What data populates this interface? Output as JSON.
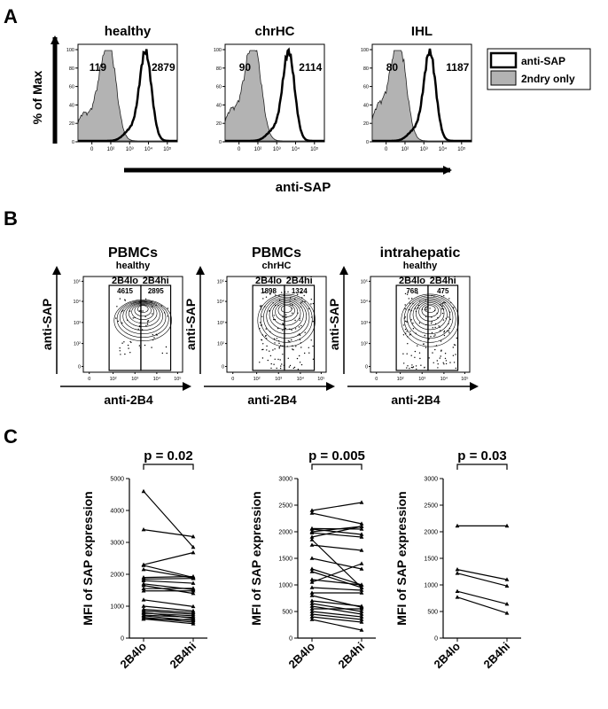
{
  "panels": {
    "A": "A",
    "B": "B",
    "C": "C"
  },
  "panel_a": {
    "ylabel": "% of Max",
    "xlabel": "anti-SAP",
    "legend": [
      "anti-SAP",
      "2ndry only"
    ],
    "histograms": [
      {
        "title": "healthy",
        "mfi_2ndry": "119",
        "mfi_sap": "2879"
      },
      {
        "title": "chrHC",
        "mfi_2ndry": "90",
        "mfi_sap": "2114"
      },
      {
        "title": "IHL",
        "mfi_2ndry": "80",
        "mfi_sap": "1187"
      }
    ],
    "y_ticks": [
      "0",
      "20",
      "40",
      "60",
      "80",
      "100"
    ],
    "x_ticks": [
      "0",
      "10²",
      "10³",
      "10⁴",
      "10⁵"
    ]
  },
  "panel_b": {
    "xlabel": "anti-2B4",
    "ylabel": "anti-SAP",
    "gate_lo": "2B4lo",
    "gate_hi": "2B4hi",
    "plots": [
      {
        "title": "PBMCs",
        "subtitle": "healthy",
        "val_lo": "4615",
        "val_hi": "2895"
      },
      {
        "title": "PBMCs",
        "subtitle": "chrHC",
        "val_lo": "1898",
        "val_hi": "1324"
      },
      {
        "title": "intrahepatic",
        "subtitle": "healthy",
        "val_lo": "768",
        "val_hi": "475"
      }
    ],
    "y_ticks": [
      "0",
      "10²",
      "10³",
      "10⁴",
      "10⁵"
    ],
    "x_ticks": [
      "0",
      "10²",
      "10³",
      "10⁴",
      "10⁵"
    ]
  },
  "chart_data": [
    {
      "type": "line",
      "title": "p = 0.02",
      "ylabel": "MFI of SAP expression",
      "categories": [
        "2B4lo",
        "2B4hi"
      ],
      "ylim": [
        0,
        5000
      ],
      "y_ticks": [
        "0",
        "1000",
        "2000",
        "3000",
        "4000",
        "5000"
      ],
      "pairs": [
        [
          4600,
          2850
        ],
        [
          3400,
          3180
        ],
        [
          2300,
          2680
        ],
        [
          2280,
          1900
        ],
        [
          2150,
          1880
        ],
        [
          1900,
          1930
        ],
        [
          1850,
          1870
        ],
        [
          1800,
          1720
        ],
        [
          1700,
          1520
        ],
        [
          1650,
          1400
        ],
        [
          1550,
          1560
        ],
        [
          1480,
          1480
        ],
        [
          1200,
          990
        ],
        [
          1000,
          850
        ],
        [
          900,
          800
        ],
        [
          850,
          750
        ],
        [
          800,
          620
        ],
        [
          780,
          700
        ],
        [
          720,
          650
        ],
        [
          700,
          550
        ],
        [
          650,
          500
        ],
        [
          600,
          580
        ],
        [
          600,
          450
        ]
      ]
    },
    {
      "type": "line",
      "title": "p = 0.005",
      "ylabel": "MFI of SAP expression",
      "categories": [
        "2B4lo",
        "2B4hi"
      ],
      "ylim": [
        0,
        3000
      ],
      "y_ticks": [
        "0",
        "500",
        "1000",
        "1500",
        "2000",
        "2500",
        "3000"
      ],
      "pairs": [
        [
          2400,
          2550
        ],
        [
          2350,
          2150
        ],
        [
          2060,
          2050
        ],
        [
          2050,
          1950
        ],
        [
          2000,
          2100
        ],
        [
          1980,
          1900
        ],
        [
          1900,
          2100
        ],
        [
          1850,
          950
        ],
        [
          1750,
          1650
        ],
        [
          1500,
          1300
        ],
        [
          1300,
          1000
        ],
        [
          1250,
          950
        ],
        [
          1100,
          1000
        ],
        [
          1050,
          1400
        ],
        [
          950,
          900
        ],
        [
          850,
          850
        ],
        [
          800,
          580
        ],
        [
          700,
          600
        ],
        [
          650,
          500
        ],
        [
          600,
          450
        ],
        [
          550,
          550
        ],
        [
          500,
          400
        ],
        [
          450,
          350
        ],
        [
          400,
          300
        ],
        [
          350,
          150
        ]
      ]
    },
    {
      "type": "line",
      "title": "p = 0.03",
      "ylabel": "MFI of SAP expression",
      "categories": [
        "2B4lo",
        "2B4hi"
      ],
      "ylim": [
        0,
        3000
      ],
      "y_ticks": [
        "0",
        "500",
        "1000",
        "1500",
        "2000",
        "2500",
        "3000"
      ],
      "pairs": [
        [
          2110,
          2110
        ],
        [
          1290,
          1100
        ],
        [
          1220,
          980
        ],
        [
          880,
          640
        ],
        [
          770,
          470
        ]
      ]
    }
  ]
}
